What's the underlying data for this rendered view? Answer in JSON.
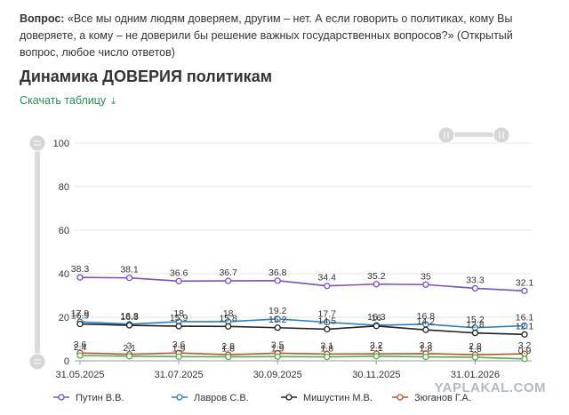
{
  "question": {
    "label": "Вопрос:",
    "text": "«Все мы одним людям доверяем, другим – нет. А если говорить о политиках, кому Вы доверяете, а кому – не доверили бы решение важных государственных вопросов?» (Открытый вопрос, любое число ответов)"
  },
  "header": {
    "title": "Динамика ДОВЕРИЯ политикам"
  },
  "download": {
    "label": "Скачать таблицу",
    "icon": "download-icon"
  },
  "watermark": "YAPLAKAL.COM",
  "chart_data": {
    "type": "line",
    "title": "",
    "xlabel": "",
    "ylabel": "",
    "ylim": [
      0,
      100
    ],
    "yticks": [
      0,
      20,
      40,
      60,
      80,
      100
    ],
    "grid": "horizontal",
    "legend": "bottom",
    "x": [
      "31.05.2025",
      "30.06.2025",
      "31.07.2025",
      "31.08.2025",
      "30.09.2025",
      "31.10.2025",
      "30.11.2025",
      "31.12.2025",
      "31.01.2026",
      "28.02.2026"
    ],
    "xtick_labels": [
      "31.05.2025",
      "31.07.2025",
      "30.09.2025",
      "30.11.2025",
      "31.01.2026"
    ],
    "xtick_index": [
      0,
      2,
      4,
      6,
      8
    ],
    "series": [
      {
        "name": "Путин В.В.",
        "color": "#7b4fc4",
        "values": [
          38.3,
          38.1,
          36.6,
          36.7,
          36.8,
          34.4,
          35.2,
          35,
          33.3,
          32.1
        ],
        "labels": [
          "38.3",
          "38.1",
          "36.6",
          "36.7",
          "36.8",
          "34.4",
          "35.2",
          "35",
          "33.3",
          "32.1"
        ]
      },
      {
        "name": "Лавров С.В.",
        "color": "#2e7fc0",
        "values": [
          17.9,
          16.8,
          18,
          18,
          19.2,
          17.7,
          16.3,
          16.8,
          15.2,
          16.1
        ],
        "labels": [
          "17.9",
          "16.8",
          "18",
          "18",
          "19.2",
          "17.7",
          "16.3",
          "16.8",
          "15.2",
          "16.1"
        ]
      },
      {
        "name": "Мишустин М.В.",
        "color": "#222222",
        "values": [
          16.9,
          16.3,
          15.9,
          15.8,
          15.2,
          14.5,
          16,
          14.2,
          12.8,
          12.1
        ],
        "labels": [
          "16.9",
          "16.3",
          "15.9",
          "15.8",
          "15.2",
          "14.5",
          "16",
          "14.2",
          "12.8",
          "12.1"
        ]
      },
      {
        "name": "Зюганов Г.А.",
        "color": "#b5542a",
        "values": [
          3.6,
          3,
          3.6,
          2.8,
          3.5,
          3.1,
          3.2,
          3.3,
          2.8,
          3.2
        ],
        "labels": [
          "3.6",
          "3",
          "3.6",
          "2.8",
          "3.5",
          "3.1",
          "3.2",
          "3.3",
          "2.8",
          "3.2"
        ]
      },
      {
        "name": "",
        "color": "#4caf50",
        "values": [
          2.4,
          2.1,
          1.9,
          1.8,
          1.9,
          1.8,
          2.1,
          1.8,
          1.6,
          0.9
        ],
        "labels": [
          "2.4",
          "2.1",
          "1.9",
          "1.8",
          "1.9",
          "1.8",
          "2.1",
          "1.8",
          "1.6",
          "0.9"
        ]
      }
    ]
  }
}
